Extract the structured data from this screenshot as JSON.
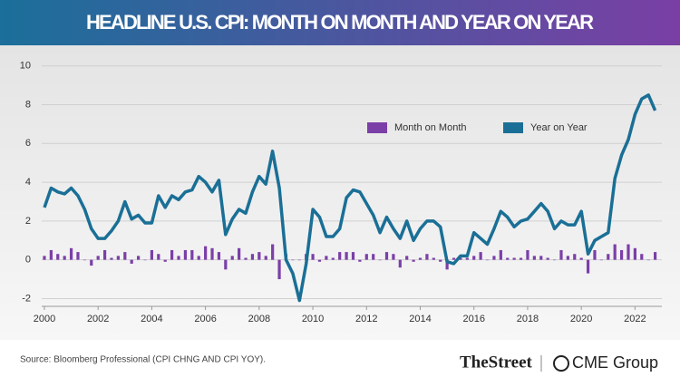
{
  "chart_data": {
    "type": "bar-line",
    "title": "HEADLINE U.S. CPI: MONTH ON MONTH AND YEAR ON YEAR",
    "x": [
      2000,
      2000.25,
      2000.5,
      2000.75,
      2001,
      2001.25,
      2001.5,
      2001.75,
      2002,
      2002.25,
      2002.5,
      2002.75,
      2003,
      2003.25,
      2003.5,
      2003.75,
      2004,
      2004.25,
      2004.5,
      2004.75,
      2005,
      2005.25,
      2005.5,
      2005.75,
      2006,
      2006.25,
      2006.5,
      2006.75,
      2007,
      2007.25,
      2007.5,
      2007.75,
      2008,
      2008.25,
      2008.5,
      2008.75,
      2009,
      2009.25,
      2009.5,
      2009.75,
      2010,
      2010.25,
      2010.5,
      2010.75,
      2011,
      2011.25,
      2011.5,
      2011.75,
      2012,
      2012.25,
      2012.5,
      2012.75,
      2013,
      2013.25,
      2013.5,
      2013.75,
      2014,
      2014.25,
      2014.5,
      2014.75,
      2015,
      2015.25,
      2015.5,
      2015.75,
      2016,
      2016.25,
      2016.5,
      2016.75,
      2017,
      2017.25,
      2017.5,
      2017.75,
      2018,
      2018.25,
      2018.5,
      2018.75,
      2019,
      2019.25,
      2019.5,
      2019.75,
      2020,
      2020.25,
      2020.5,
      2020.75,
      2021,
      2021.25,
      2021.5,
      2021.75,
      2022,
      2022.25,
      2022.5,
      2022.75
    ],
    "series": [
      {
        "name": "Month on Month",
        "color": "#7b3fa8",
        "kind": "bar",
        "values": [
          0.2,
          0.5,
          0.3,
          0.2,
          0.6,
          0.4,
          0.0,
          -0.3,
          0.2,
          0.5,
          0.1,
          0.2,
          0.4,
          -0.2,
          0.2,
          0.0,
          0.5,
          0.3,
          -0.1,
          0.5,
          0.2,
          0.5,
          0.5,
          0.2,
          0.7,
          0.6,
          0.4,
          -0.5,
          0.2,
          0.6,
          0.1,
          0.3,
          0.4,
          0.2,
          0.8,
          -1.0,
          0.3,
          0.0,
          0.0,
          0.3,
          0.3,
          -0.1,
          0.2,
          0.1,
          0.4,
          0.4,
          0.4,
          -0.1,
          0.3,
          0.3,
          0.0,
          0.4,
          0.3,
          -0.4,
          0.2,
          -0.1,
          0.1,
          0.3,
          0.1,
          -0.1,
          -0.5,
          0.1,
          0.1,
          0.1,
          0.2,
          0.4,
          0.0,
          0.2,
          0.5,
          0.1,
          0.1,
          0.1,
          0.5,
          0.2,
          0.2,
          0.1,
          0.0,
          0.5,
          0.2,
          0.3,
          0.1,
          -0.7,
          0.5,
          0.0,
          0.3,
          0.8,
          0.5,
          0.8,
          0.6,
          0.3,
          0.0,
          0.4
        ]
      },
      {
        "name": "Year on Year",
        "color": "#1a6f96",
        "kind": "line",
        "values": [
          2.7,
          3.7,
          3.5,
          3.4,
          3.7,
          3.3,
          2.6,
          1.6,
          1.1,
          1.1,
          1.5,
          2.0,
          3.0,
          2.1,
          2.3,
          1.9,
          1.9,
          3.3,
          2.7,
          3.3,
          3.1,
          3.5,
          3.6,
          4.3,
          4.0,
          3.5,
          4.1,
          1.3,
          2.1,
          2.6,
          2.4,
          3.5,
          4.3,
          3.9,
          5.6,
          3.7,
          0.0,
          -0.7,
          -2.1,
          -0.2,
          2.6,
          2.2,
          1.2,
          1.2,
          1.6,
          3.2,
          3.6,
          3.5,
          2.9,
          2.3,
          1.4,
          2.2,
          1.6,
          1.1,
          2.0,
          1.0,
          1.6,
          2.0,
          2.0,
          1.7,
          -0.1,
          -0.2,
          0.2,
          0.2,
          1.4,
          1.1,
          0.8,
          1.6,
          2.5,
          2.2,
          1.7,
          2.0,
          2.1,
          2.5,
          2.9,
          2.5,
          1.6,
          2.0,
          1.8,
          1.8,
          2.5,
          0.3,
          1.0,
          1.2,
          1.4,
          4.2,
          5.4,
          6.2,
          7.5,
          8.3,
          8.5,
          7.7
        ]
      }
    ],
    "xlim": [
      1999.9,
      2023
    ],
    "xticks": [
      2000,
      2002,
      2004,
      2006,
      2008,
      2010,
      2012,
      2014,
      2016,
      2018,
      2020,
      2022
    ],
    "ylim": [
      -2.4,
      10.5
    ],
    "yticks": [
      -2,
      0,
      2,
      4,
      6,
      8,
      10
    ],
    "grid": true,
    "legend": "upper-right"
  },
  "footer": {
    "source": "Source: Bloomberg Professional (CPI CHNG AND CPI YOY).",
    "brand1": "TheStreet",
    "brand2": "CME Group"
  }
}
